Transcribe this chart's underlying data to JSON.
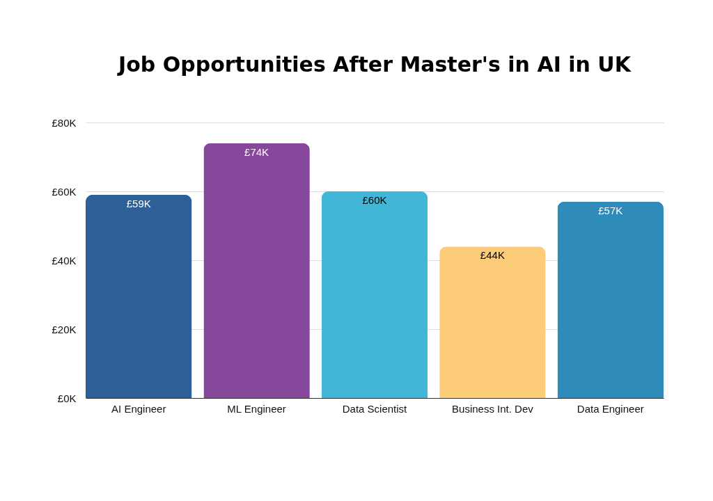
{
  "chart_data": {
    "type": "bar",
    "title": "Job Opportunities After Master's in AI in UK",
    "categories": [
      "AI Engineer",
      "ML Engineer",
      "Data Scientist",
      "Business Int. Dev",
      "Data Engineer"
    ],
    "values": [
      59,
      74,
      60,
      44,
      57
    ],
    "colors": [
      "#2e6098",
      "#87479a",
      "#41b6d6",
      "#fdcc78",
      "#2e8bba"
    ],
    "value_labels": [
      "£59K",
      "£74K",
      "£60K",
      "£44K",
      "£57K"
    ],
    "ylim": [
      0,
      80
    ],
    "yticks": [
      {
        "value": 0,
        "label": "£0K"
      },
      {
        "value": 20,
        "label": "£20K"
      },
      {
        "value": 40,
        "label": "£40K"
      },
      {
        "value": 60,
        "label": "£60K"
      },
      {
        "value": 80,
        "label": "£80K"
      }
    ],
    "grid": "y"
  }
}
